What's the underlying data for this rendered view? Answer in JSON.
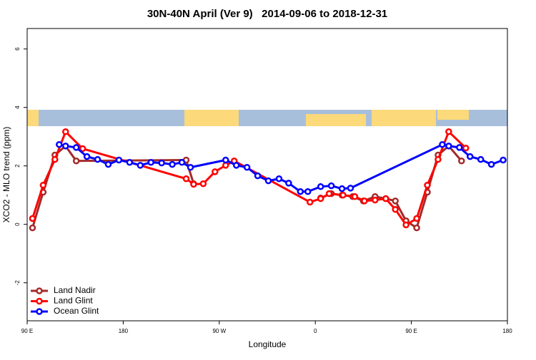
{
  "chart_data": {
    "type": "line",
    "title": "30N-40N April (Ver 9)   2014-09-06 to 2018-12-31",
    "xlabel": "Longitude",
    "ylabel": "XCO2 - MLO trend (ppm)",
    "xlim": [
      90,
      540
    ],
    "ylim": [
      -3.3,
      6.7
    ],
    "xticks": [
      {
        "value": 90,
        "label": "90 E"
      },
      180,
      {
        "value": 270,
        "label": "90 W"
      },
      {
        "value": 360,
        "label": "0"
      },
      {
        "value": 450,
        "label": "90 E"
      },
      {
        "value": 540,
        "label": "180"
      }
    ],
    "yticks": [
      -2,
      0,
      2,
      4,
      6
    ],
    "legend": "bottom-left",
    "series": [
      {
        "name": "Land Nadir",
        "color": "#a52a2a",
        "x": [
          95,
          105,
          116,
          126,
          136,
          239,
          246,
          355,
          365,
          375,
          385,
          395,
          405,
          416,
          426,
          435,
          445,
          455,
          465,
          475,
          485,
          497
        ],
        "values": [
          -0.12,
          1.1,
          2.37,
          2.68,
          2.17,
          2.2,
          1.39,
          null,
          0.9,
          1.05,
          1.0,
          0.95,
          0.8,
          0.95,
          0.88,
          0.8,
          0.12,
          -0.12,
          1.1,
          2.37,
          2.68,
          2.17
        ]
      },
      {
        "name": "Land Glint",
        "color": "#ff0000",
        "x": [
          95,
          105,
          116,
          126,
          142,
          239,
          246,
          255,
          266,
          276,
          284,
          355,
          365,
          373,
          386,
          397,
          406,
          416,
          426,
          435,
          445,
          455,
          465,
          475,
          485,
          501
        ],
        "values": [
          0.2,
          1.34,
          2.22,
          3.17,
          2.59,
          1.56,
          1.37,
          1.39,
          1.8,
          2.02,
          2.17,
          0.76,
          0.88,
          1.05,
          1.0,
          0.95,
          0.8,
          0.83,
          0.88,
          0.51,
          -0.02,
          0.2,
          1.34,
          2.22,
          3.17,
          2.61
        ]
      },
      {
        "name": "Ocean Glint",
        "color": "#0000ff",
        "x": [
          120,
          126,
          136,
          146,
          156,
          166,
          176,
          186,
          196,
          206,
          216,
          226,
          235,
          243,
          276,
          286,
          296,
          306,
          316,
          326,
          335,
          346,
          353,
          365,
          375,
          385,
          393,
          479,
          485,
          495,
          505,
          515,
          525,
          536
        ],
        "values": [
          2.73,
          2.68,
          2.63,
          2.32,
          2.22,
          2.05,
          2.2,
          2.12,
          2.02,
          2.12,
          2.1,
          2.05,
          2.12,
          1.95,
          2.2,
          2.02,
          1.95,
          1.66,
          1.49,
          1.56,
          1.41,
          1.12,
          1.12,
          1.29,
          1.32,
          1.22,
          1.24,
          2.73,
          2.68,
          2.63,
          2.32,
          2.22,
          2.05,
          2.2
        ]
      }
    ]
  }
}
